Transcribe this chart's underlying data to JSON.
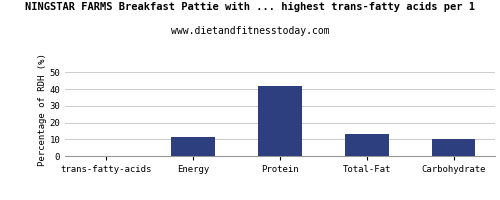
{
  "title": "NINGSTAR FARMS Breakfast Pattie with ... highest trans-fatty acids per 1",
  "subtitle": "www.dietandfitnesstoday.com",
  "categories": [
    "trans-fatty-acids",
    "Energy",
    "Protein",
    "Total-Fat",
    "Carbohydrate"
  ],
  "values": [
    0,
    11.5,
    42,
    13,
    10
  ],
  "bar_color": "#2e3f80",
  "ylabel": "Percentage of RDH (%)",
  "ylim": [
    0,
    55
  ],
  "yticks": [
    0,
    10,
    20,
    30,
    40,
    50
  ],
  "title_fontsize": 7.5,
  "subtitle_fontsize": 7,
  "ylabel_fontsize": 6.5,
  "xlabel_fontsize": 6.5,
  "tick_fontsize": 6.5,
  "bg_color": "#ffffff",
  "grid_color": "#cccccc",
  "border_color": "#999999"
}
